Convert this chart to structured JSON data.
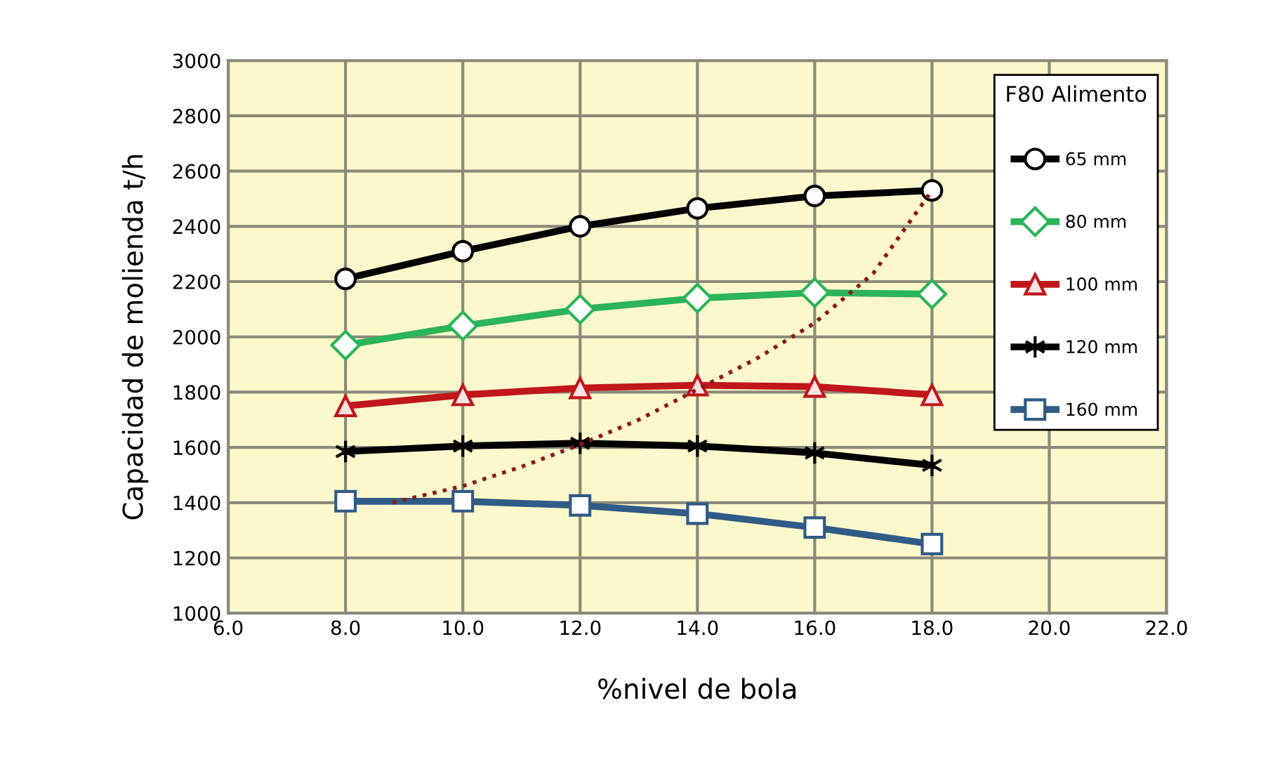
{
  "chart_data": {
    "type": "line",
    "xlabel": "%nivel de bola",
    "ylabel": "Capacidad de molienda t/h",
    "legend_title": "F80 Alimento",
    "legend": "top right",
    "grid": true,
    "x": [
      8.0,
      10.0,
      12.0,
      14.0,
      16.0,
      18.0
    ],
    "xlim": [
      6.0,
      22.0
    ],
    "xticks": [
      {
        "value": 6,
        "label": "6.0"
      },
      {
        "value": 8,
        "label": "8.0"
      },
      {
        "value": 10,
        "label": "10.0"
      },
      {
        "value": 12,
        "label": "12.0"
      },
      {
        "value": 14,
        "label": "14.0"
      },
      {
        "value": 16,
        "label": "16.0"
      },
      {
        "value": 18,
        "label": "18.0"
      },
      {
        "value": 20,
        "label": "20.0"
      },
      {
        "value": 22,
        "label": "22.0"
      }
    ],
    "ylim": [
      1000,
      3000
    ],
    "yticks": [
      1000,
      1200,
      1400,
      1600,
      1800,
      2000,
      2200,
      2400,
      2600,
      2800,
      3000
    ],
    "series": [
      {
        "name": "65 mm",
        "color": "#000000",
        "marker": "circle",
        "values": [
          2210,
          2310,
          2400,
          2465,
          2510,
          2530
        ]
      },
      {
        "name": "80 mm",
        "color": "#2bb45a",
        "marker": "diamond",
        "values": [
          1970,
          2040,
          2100,
          2140,
          2160,
          2155
        ]
      },
      {
        "name": "100 mm",
        "color": "#c0161c",
        "marker": "triangle",
        "values": [
          1750,
          1790,
          1815,
          1825,
          1820,
          1790
        ]
      },
      {
        "name": "120 mm",
        "color": "#000000",
        "marker": "cross",
        "values": [
          1585,
          1605,
          1615,
          1605,
          1580,
          1535
        ]
      },
      {
        "name": "160 mm",
        "color": "#2f5b86",
        "marker": "square",
        "values": [
          1405,
          1405,
          1390,
          1360,
          1310,
          1250
        ]
      },
      {
        "color": "#8b1a1a",
        "marker": "none",
        "line_style": "dotted",
        "x": [
          8.8,
          10,
          11,
          12,
          13,
          14,
          15,
          16,
          17,
          18
        ],
        "values": [
          1400,
          1460,
          1530,
          1610,
          1700,
          1810,
          1920,
          2050,
          2230,
          2530
        ]
      }
    ]
  }
}
